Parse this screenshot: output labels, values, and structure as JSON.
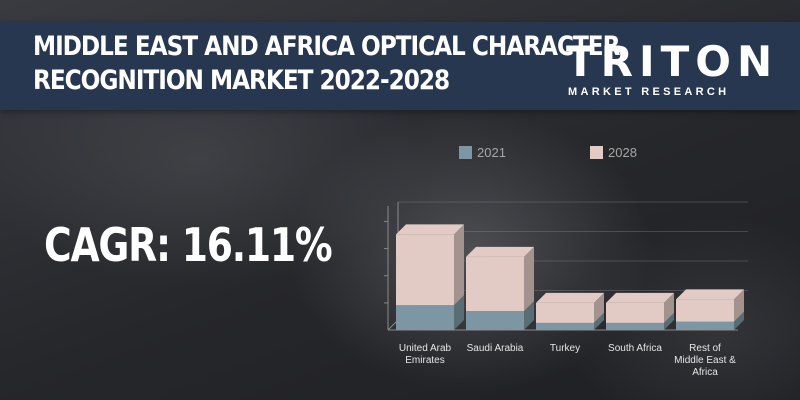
{
  "header": {
    "title_line1": "MIDDLE EAST AND AFRICA OPTICAL CHARACTER",
    "title_line2": "RECOGNITION MARKET 2022-2028",
    "logo_main": "TRITON",
    "logo_sub": "MARKET RESEARCH"
  },
  "cagr": {
    "label": "CAGR:",
    "value": "16.11%"
  },
  "colors": {
    "header_bg": "#27374f",
    "series_2021": "#7c97a3",
    "series_2028": "#e2cbc4"
  },
  "chart_data": {
    "type": "bar",
    "stacked": true,
    "style": "3d",
    "categories": [
      "United Arab Emirates",
      "Saudi Arabia",
      "Turkey",
      "South Africa",
      "Rest of Middle East & Africa"
    ],
    "category_label_lines": [
      [
        "United Arab",
        "Emirates"
      ],
      [
        "Saudi Arabia"
      ],
      [
        "Turkey"
      ],
      [
        "South Africa"
      ],
      [
        "Rest of",
        "Middle East &",
        "Africa"
      ]
    ],
    "series": [
      {
        "name": "2021",
        "values": [
          21,
          16,
          6,
          6,
          7
        ],
        "color": "#7c97a3"
      },
      {
        "name": "2028",
        "values": [
          60,
          46,
          17,
          17,
          19
        ],
        "color": "#e2cbc4"
      }
    ],
    "ylim": [
      0,
      100
    ],
    "yticks": 4,
    "legend": "top",
    "axis_labels_shown": false
  }
}
